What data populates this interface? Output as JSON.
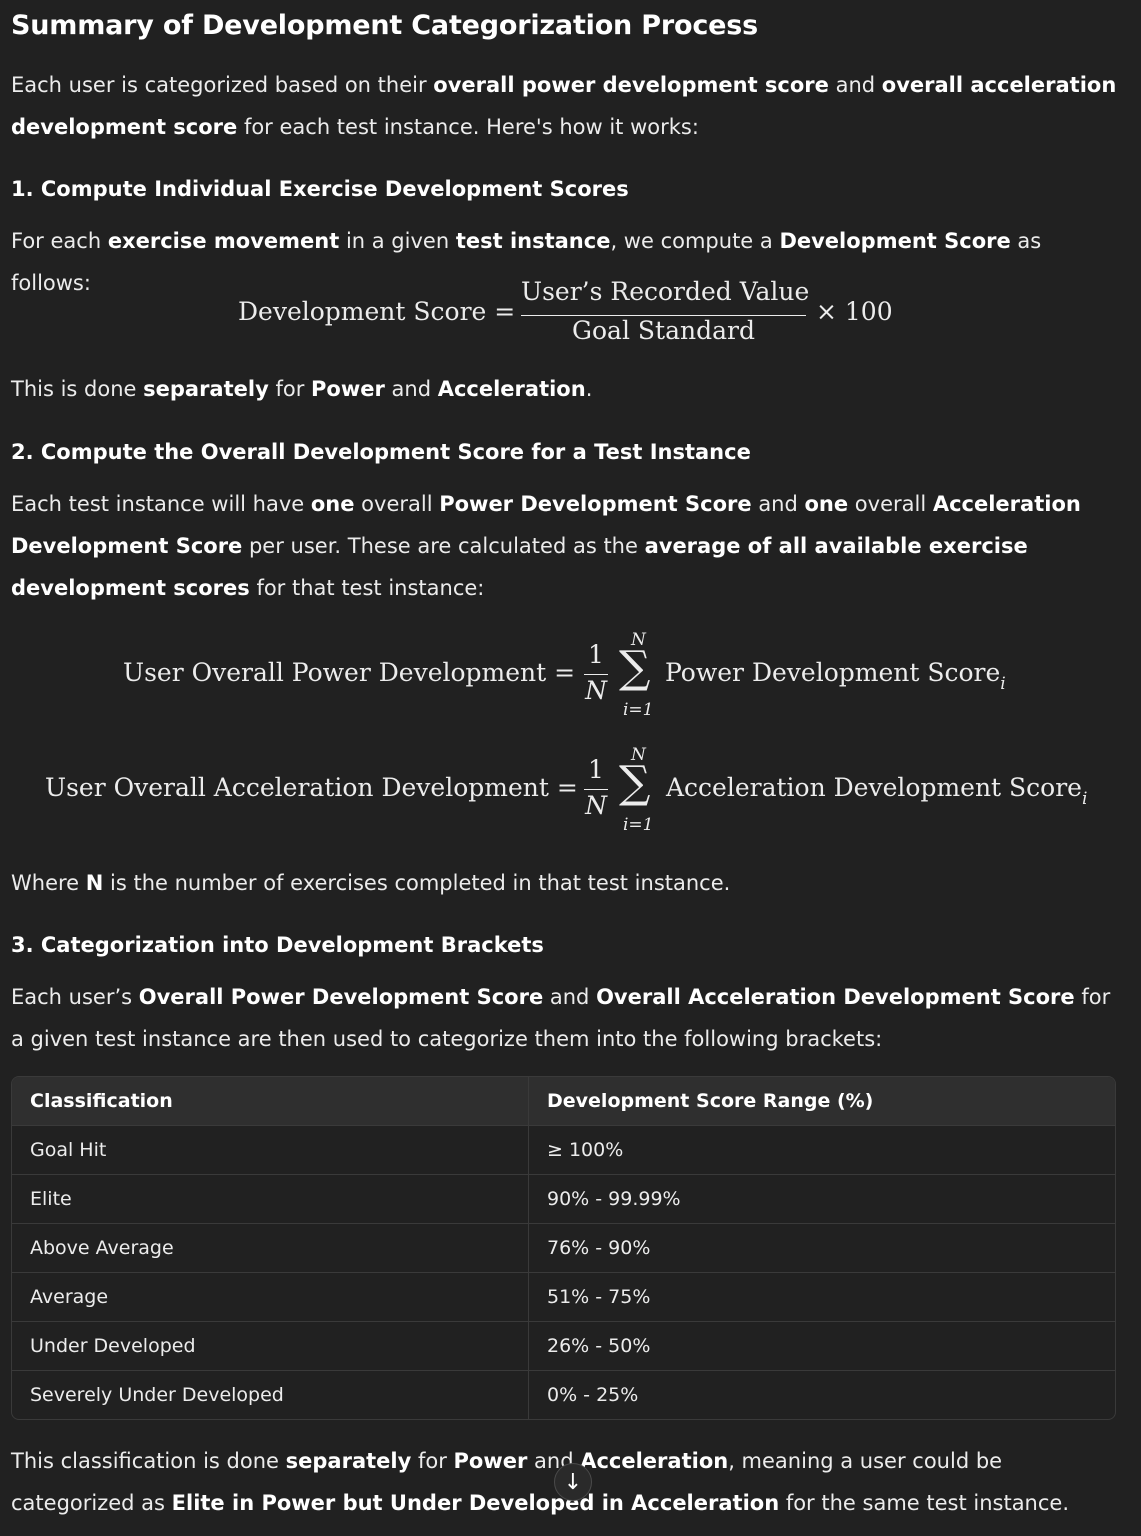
{
  "title": "Summary of Development Categorization Process",
  "intro": {
    "t1": "Each user is categorized based on their ",
    "b1": "overall power development score",
    "t2": " and ",
    "b2": "overall acceleration development score",
    "t3": " for each test instance. Here's how it works:"
  },
  "section1": {
    "heading": "1. Compute Individual Exercise Development Scores",
    "p_t1": "For each ",
    "p_b1": "exercise movement",
    "p_t2": " in a given ",
    "p_b2": "test instance",
    "p_t3": ", we compute a ",
    "p_b3": "Development Score",
    "p_t4": " as follows:",
    "formula": {
      "lhs": "Development Score =",
      "numerator": "User’s Recorded Value",
      "denominator": "Goal Standard",
      "rhs": "× 100"
    },
    "note_t1": "This is done ",
    "note_b1": "separately",
    "note_t2": " for ",
    "note_b2": "Power",
    "note_t3": " and ",
    "note_b3": "Acceleration",
    "note_t4": "."
  },
  "section2": {
    "heading": "2. Compute the Overall Development Score for a Test Instance",
    "p_t1": "Each test instance will have ",
    "p_b1": "one",
    "p_t2": " overall ",
    "p_b2": "Power Development Score",
    "p_t3": " and ",
    "p_b3": "one",
    "p_t4": " overall ",
    "p_b4": "Acceleration Development Score",
    "p_t5": " per user. These are calculated as the ",
    "p_b5": "average of all available exercise development scores",
    "p_t6": " for that test instance:",
    "formula_power": {
      "lhs": "User Overall Power Development =",
      "one": "1",
      "N": "N",
      "sum_top": "N",
      "sum_bottom": "i=1",
      "term": "Power Development Score",
      "sub": "i"
    },
    "formula_accel": {
      "lhs": "User Overall Acceleration Development =",
      "one": "1",
      "N": "N",
      "sum_top": "N",
      "sum_bottom": "i=1",
      "term": "Acceleration Development Score",
      "sub": "i"
    },
    "where_t1": "Where ",
    "where_b1": "N",
    "where_t2": " is the number of exercises completed in that test instance."
  },
  "section3": {
    "heading": "3. Categorization into Development Brackets",
    "p_t1": "Each user’s ",
    "p_b1": "Overall Power Development Score",
    "p_t2": " and ",
    "p_b2": "Overall Acceleration Development Score",
    "p_t3": " for a given test instance are then used to categorize them into the following brackets:"
  },
  "table": {
    "headers": [
      "Classification",
      "Development Score Range (%)"
    ],
    "rows": [
      [
        "Goal Hit",
        "≥ 100%"
      ],
      [
        "Elite",
        "90% - 99.99%"
      ],
      [
        "Above Average",
        "76% - 90%"
      ],
      [
        "Average",
        "51% - 75%"
      ],
      [
        "Under Developed",
        "26% - 50%"
      ],
      [
        "Severely Under Developed",
        "0% - 25%"
      ]
    ]
  },
  "closing": {
    "t1": "This classification is done ",
    "b1": "separately",
    "t2": " for ",
    "b2": "Power",
    "t3": " and ",
    "b3": "Acceleration",
    "t4": ", meaning a user could be categorized as ",
    "b4": "Elite in Power but Under Developed in Acceleration",
    "t5": " for the same test instance."
  },
  "scroll_button": {
    "icon": "arrow-down-icon",
    "glyph": "↓"
  }
}
